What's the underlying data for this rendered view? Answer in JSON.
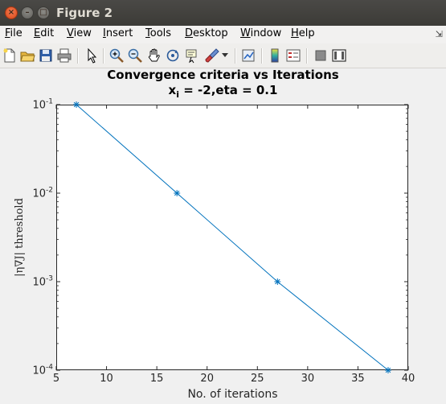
{
  "window": {
    "title": "Figure 2"
  },
  "menu": [
    "File",
    "Edit",
    "View",
    "Insert",
    "Tools",
    "Desktop",
    "Window",
    "Help"
  ],
  "toolbar": {
    "icons": [
      "new-file-icon",
      "open-folder-icon",
      "save-icon",
      "print-icon",
      "pointer-icon",
      "zoom-in-icon",
      "zoom-out-icon",
      "pan-hand-icon",
      "rotate-3d-icon",
      "data-cursor-icon",
      "brush-icon",
      "dropdown-arrow-icon",
      "link-plot-icon",
      "colorbar-icon",
      "legend-icon",
      "hide-plot-tools-icon",
      "show-plot-tools-icon"
    ]
  },
  "chart_data": {
    "type": "line",
    "title": "Convergence criteria vs Iterations",
    "subtitle_main": "x",
    "subtitle_sub": "i",
    "subtitle_rest": " = -2,eta = 0.1",
    "xlabel": "No. of iterations",
    "ylabel": "|η∇J| threshold",
    "xlim": [
      5,
      40
    ],
    "ylim": [
      0.0001,
      0.1
    ],
    "yscale": "log",
    "xticks": [
      5,
      10,
      15,
      20,
      25,
      30,
      35,
      40
    ],
    "yticks": [
      {
        "value": 0.1,
        "base": "10",
        "exp": "-1"
      },
      {
        "value": 0.01,
        "base": "10",
        "exp": "-2"
      },
      {
        "value": 0.001,
        "base": "10",
        "exp": "-3"
      },
      {
        "value": 0.0001,
        "base": "10",
        "exp": "-4"
      }
    ],
    "grid": false,
    "series": [
      {
        "x": [
          7,
          17,
          27,
          38
        ],
        "y": [
          0.1,
          0.01,
          0.001,
          0.0001
        ],
        "color": "#0072bd",
        "marker": "asterisk"
      }
    ]
  }
}
